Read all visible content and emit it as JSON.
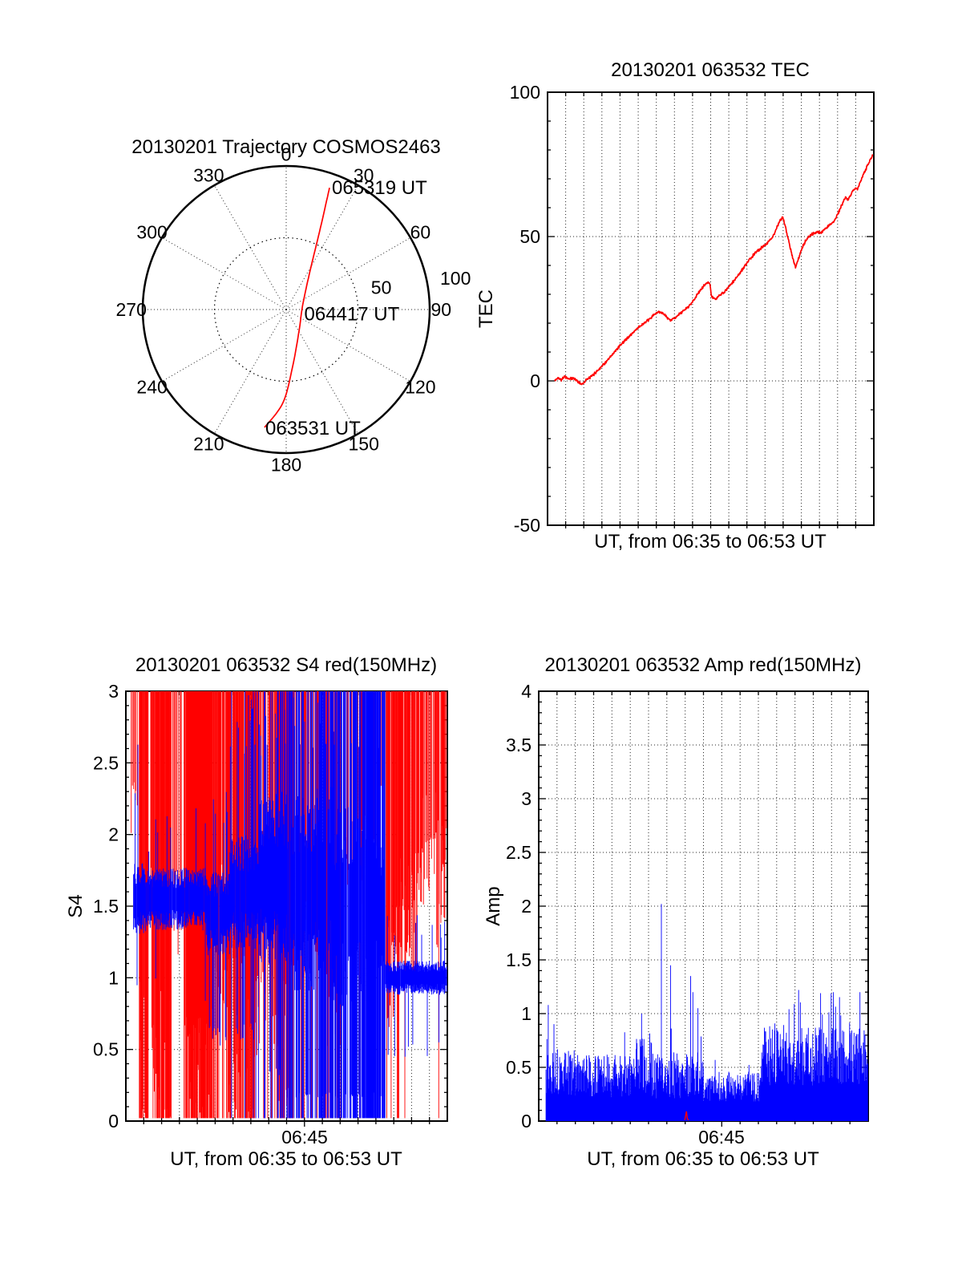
{
  "colors": {
    "trace_red": "#ff0000",
    "trace_blue": "#0000ff",
    "axis": "#000000",
    "background": "#ffffff"
  },
  "panels": {
    "trajectory": {
      "title": "20130201 Trajectory COSMOS2463"
    },
    "tec": {
      "title": "20130201 063532 TEC",
      "ylabel": "TEC",
      "xlabel": "UT, from 06:35 to 06:53 UT"
    },
    "s4": {
      "title": "20130201 063532 S4 red(150MHz)",
      "ylabel": "S4",
      "xlabel": "UT, from 06:35 to 06:53 UT",
      "xtick_label": "06:45"
    },
    "amp": {
      "title": "20130201 063532 Amp red(150MHz)",
      "ylabel": "Amp",
      "xlabel": "UT, from 06:35 to 06:53 UT",
      "xtick_label": "06:45"
    }
  },
  "chart_data": [
    {
      "panel": "trajectory",
      "type": "polar-trajectory",
      "title": "20130201 Trajectory COSMOS2463",
      "azimuth_ticks_deg": [
        0,
        30,
        60,
        90,
        120,
        150,
        180,
        210,
        240,
        270,
        300,
        330
      ],
      "rlim": [
        0,
        100
      ],
      "radial_ticks": [
        {
          "value": 50,
          "label": "50",
          "label_az_deg": 77,
          "label_r": 68
        },
        {
          "value": 100,
          "label": "100",
          "label_az_deg": 79.5,
          "label_r": 120
        }
      ],
      "trajectory_color": "#ff0000",
      "trajectory_points_az_deg_r": [
        [
          190.4,
          83.5
        ],
        [
          182.0,
          65.0
        ],
        [
          173.6,
          40.0
        ],
        [
          149.3,
          17.5
        ],
        [
          74.0,
          12.0
        ],
        [
          31.5,
          32.0
        ],
        [
          22.7,
          62.0
        ],
        [
          19.6,
          90.0
        ]
      ],
      "time_labels": [
        {
          "text": "063531 UT",
          "az_deg": 190.4,
          "r": 83.5
        },
        {
          "text": "064417 UT",
          "az_deg": 110.0,
          "r": 11.0
        },
        {
          "text": "065319 UT",
          "az_deg": 19.6,
          "r": 90.0
        }
      ]
    },
    {
      "panel": "tec",
      "type": "line",
      "title": "20130201 063532 TEC",
      "xlabel": "UT, from 06:35 to 06:53 UT",
      "ylabel": "TEC",
      "x_unit": "minutes after 06:35 UT",
      "x_range": [
        0,
        18
      ],
      "x_axis_time": [
        "06:35",
        "06:53"
      ],
      "x_grid_step_min": 1,
      "ylim": [
        -50,
        100
      ],
      "yticks": [
        100,
        50,
        0,
        -50
      ],
      "ytick_minor_step": 10,
      "grid_y": [
        0,
        50
      ],
      "color": "#ff0000",
      "noise_amplitude": 0.55,
      "noise_seed": 42,
      "anchors_t_min_value": [
        [
          0.4,
          0
        ],
        [
          0.6,
          1.2
        ],
        [
          0.75,
          0.4
        ],
        [
          0.95,
          1.6
        ],
        [
          1.15,
          0.6
        ],
        [
          1.45,
          0.9
        ],
        [
          1.7,
          -0.3
        ],
        [
          1.9,
          -1.2
        ],
        [
          2.1,
          0.2
        ],
        [
          2.4,
          1.4
        ],
        [
          2.7,
          3.2
        ],
        [
          3.0,
          5.2
        ],
        [
          3.3,
          7.0
        ],
        [
          3.6,
          9.2
        ],
        [
          3.95,
          12.0
        ],
        [
          4.3,
          14.2
        ],
        [
          4.6,
          16.0
        ],
        [
          5.0,
          18.5
        ],
        [
          5.3,
          19.8
        ],
        [
          5.6,
          21.2
        ],
        [
          5.85,
          22.8
        ],
        [
          6.05,
          23.6
        ],
        [
          6.2,
          24.0
        ],
        [
          6.4,
          23.2
        ],
        [
          6.6,
          21.8
        ],
        [
          6.8,
          20.9
        ],
        [
          7.0,
          21.8
        ],
        [
          7.2,
          22.8
        ],
        [
          7.45,
          24.0
        ],
        [
          7.7,
          25.3
        ],
        [
          7.95,
          27.0
        ],
        [
          8.2,
          29.3
        ],
        [
          8.5,
          32.0
        ],
        [
          8.7,
          33.4
        ],
        [
          8.85,
          34.2
        ],
        [
          8.95,
          33.8
        ],
        [
          9.05,
          29.0
        ],
        [
          9.25,
          28.4
        ],
        [
          9.5,
          29.6
        ],
        [
          9.75,
          30.8
        ],
        [
          10.0,
          32.5
        ],
        [
          10.3,
          34.8
        ],
        [
          10.6,
          37.3
        ],
        [
          10.9,
          39.9
        ],
        [
          11.2,
          42.4
        ],
        [
          11.5,
          44.6
        ],
        [
          11.75,
          45.9
        ],
        [
          12.0,
          47.1
        ],
        [
          12.2,
          48.3
        ],
        [
          12.4,
          49.8
        ],
        [
          12.55,
          51.5
        ],
        [
          12.7,
          53.8
        ],
        [
          12.8,
          55.2
        ],
        [
          12.9,
          56.2
        ],
        [
          12.98,
          56.6
        ],
        [
          13.1,
          54.0
        ],
        [
          13.25,
          50.0
        ],
        [
          13.4,
          46.0
        ],
        [
          13.55,
          42.0
        ],
        [
          13.68,
          39.3
        ],
        [
          13.8,
          41.5
        ],
        [
          13.95,
          44.3
        ],
        [
          14.1,
          46.8
        ],
        [
          14.3,
          49.2
        ],
        [
          14.5,
          50.4
        ],
        [
          14.7,
          51.2
        ],
        [
          14.9,
          51.6
        ],
        [
          15.1,
          51.4
        ],
        [
          15.3,
          52.6
        ],
        [
          15.5,
          53.6
        ],
        [
          15.7,
          54.6
        ],
        [
          15.9,
          56.4
        ],
        [
          16.1,
          59.0
        ],
        [
          16.3,
          61.8
        ],
        [
          16.45,
          63.8
        ],
        [
          16.58,
          62.8
        ],
        [
          16.7,
          64.2
        ],
        [
          16.85,
          65.8
        ],
        [
          17.0,
          66.8
        ],
        [
          17.1,
          66.4
        ],
        [
          17.25,
          68.8
        ],
        [
          17.4,
          71.2
        ],
        [
          17.55,
          73.2
        ],
        [
          17.7,
          75.2
        ],
        [
          17.85,
          77.2
        ],
        [
          17.95,
          78.6
        ]
      ]
    },
    {
      "panel": "s4",
      "type": "noise-envelope",
      "title": "20130201 063532 S4 red(150MHz)",
      "xlabel": "UT, from 06:35 to 06:53 UT",
      "ylabel": "S4",
      "x_unit": "minutes after 06:35 UT",
      "x_range": [
        0,
        18
      ],
      "x_axis_time": [
        "06:35",
        "06:53"
      ],
      "x_grid_step_min": 1,
      "xtick_labels": [
        {
          "t": 10,
          "label": "06:45"
        }
      ],
      "ylim": [
        0,
        3
      ],
      "yticks": [
        0,
        0.5,
        1,
        1.5,
        2,
        2.5,
        3
      ],
      "ytick_minor_step": 0.1,
      "grid_y": [
        0.5,
        1,
        1.5,
        2,
        2.5
      ],
      "synthesized_from_envelope": true,
      "noise_seed": 7,
      "series": [
        {
          "name": "red (150MHz)",
          "color": "#ff0000",
          "style": "hang-from-top",
          "segments": [
            {
              "t0": 0.3,
              "t1": 0.75,
              "density": 0.45,
              "lo_center": 2.45,
              "lo_spread": 0.45,
              "full_prob": 0.02
            },
            {
              "t0": 0.75,
              "t1": 1.25,
              "density": 0.85,
              "lo_center": 1.2,
              "lo_spread": 1.2,
              "full_prob": 0.55
            },
            {
              "t0": 1.25,
              "t1": 1.45,
              "density": 0.35,
              "lo_center": 2.2,
              "lo_spread": 0.8,
              "full_prob": 0.12
            },
            {
              "t0": 1.45,
              "t1": 2.55,
              "density": 0.93,
              "lo_center": 1.0,
              "lo_spread": 1.1,
              "full_prob": 0.66
            },
            {
              "t0": 2.55,
              "t1": 3.25,
              "density": 0.45,
              "lo_center": 2.0,
              "lo_spread": 0.9,
              "full_prob": 0.12
            },
            {
              "t0": 3.25,
              "t1": 4.95,
              "density": 0.96,
              "lo_center": 0.8,
              "lo_spread": 0.9,
              "full_prob": 0.72
            },
            {
              "t0": 4.95,
              "t1": 5.6,
              "density": 0.55,
              "lo_center": 1.8,
              "lo_spread": 1.0,
              "full_prob": 0.28
            },
            {
              "t0": 5.6,
              "t1": 7.25,
              "density": 0.85,
              "lo_center": 1.2,
              "lo_spread": 1.2,
              "full_prob": 0.5
            },
            {
              "t0": 7.25,
              "t1": 8.45,
              "density": 0.6,
              "lo_center": 1.6,
              "lo_spread": 1.2,
              "full_prob": 0.32
            },
            {
              "t0": 8.45,
              "t1": 9.25,
              "density": 0.8,
              "lo_center": 1.2,
              "lo_spread": 1.2,
              "full_prob": 0.5
            },
            {
              "t0": 9.25,
              "t1": 10.95,
              "density": 0.42,
              "lo_center": 2.0,
              "lo_spread": 1.0,
              "full_prob": 0.18
            },
            {
              "t0": 10.95,
              "t1": 12.05,
              "density": 0.7,
              "lo_center": 1.5,
              "lo_spread": 1.2,
              "full_prob": 0.4
            },
            {
              "t0": 12.05,
              "t1": 13.35,
              "density": 0.45,
              "lo_center": 2.2,
              "lo_spread": 0.8,
              "full_prob": 0.15
            },
            {
              "t0": 13.35,
              "t1": 14.55,
              "density": 0.32,
              "lo_center": 2.4,
              "lo_spread": 0.6,
              "full_prob": 0.08
            },
            {
              "t0": 14.55,
              "t1": 15.35,
              "density": 0.78,
              "lo_center": 1.6,
              "lo_spread": 1.0,
              "full_prob": 0.14
            },
            {
              "t0": 15.35,
              "t1": 16.35,
              "density": 0.72,
              "lo_center": 1.9,
              "lo_spread": 1.0,
              "full_prob": 0.05
            },
            {
              "t0": 16.35,
              "t1": 17.4,
              "density": 0.6,
              "lo_center": 2.3,
              "lo_spread": 0.8,
              "full_prob": 0.03
            },
            {
              "t0": 17.4,
              "t1": 18.0,
              "density": 0.55,
              "lo_center": 2.1,
              "lo_spread": 0.9,
              "full_prob": 0.12
            }
          ]
        },
        {
          "name": "blue",
          "color": "#0000ff",
          "style": "band",
          "segments": [
            {
              "t0": 0.4,
              "t1": 1.1,
              "density": 0.95,
              "center": 1.55,
              "spread": 0.25,
              "full_prob": 0,
              "spike_prob": 0.1,
              "spike_max": 2.65,
              "dip_prob": 0.05,
              "dip_min": 1.05
            },
            {
              "t0": 1.1,
              "t1": 4.5,
              "density": 0.95,
              "center": 1.55,
              "spread": 0.22,
              "full_prob": 0,
              "spike_prob": 0.05,
              "spike_max": 2.2,
              "dip_prob": 0.05,
              "dip_min": 1.0
            },
            {
              "t0": 4.5,
              "t1": 5.8,
              "density": 0.95,
              "center": 1.45,
              "spread": 0.3,
              "full_prob": 0.01,
              "spike_prob": 0.08,
              "spike_max": 2.3,
              "dip_prob": 0.12,
              "dip_min": 0.65
            },
            {
              "t0": 5.8,
              "t1": 7.4,
              "density": 0.95,
              "center": 1.6,
              "spread": 0.4,
              "full_prob": 0.05,
              "spike_prob": 0.14,
              "spike_max": 3.0,
              "dip_prob": 0.12,
              "dip_min": 0.7
            },
            {
              "t0": 7.4,
              "t1": 9.0,
              "density": 0.95,
              "center": 1.7,
              "spread": 0.6,
              "full_prob": 0.2,
              "spike_prob": 0.18,
              "spike_max": 3.0,
              "dip_prob": 0.15,
              "dip_min": 0.4
            },
            {
              "t0": 9.0,
              "t1": 10.6,
              "density": 0.9,
              "center": 1.6,
              "spread": 0.7,
              "full_prob": 0.42,
              "spike_prob": 0.18,
              "spike_max": 3.0,
              "dip_prob": 0.18,
              "dip_min": 0.2
            },
            {
              "t0": 10.6,
              "t1": 11.6,
              "density": 0.92,
              "center": 1.7,
              "spread": 0.65,
              "full_prob": 0.52,
              "spike_prob": 0.18,
              "spike_max": 3.0,
              "dip_prob": 0.18,
              "dip_min": 0.2
            },
            {
              "t0": 11.6,
              "t1": 13.3,
              "density": 0.9,
              "center": 1.5,
              "spread": 0.7,
              "full_prob": 0.48,
              "spike_prob": 0.18,
              "spike_max": 3.0,
              "dip_prob": 0.18,
              "dip_min": 0.2
            },
            {
              "t0": 13.3,
              "t1": 14.5,
              "density": 0.95,
              "center": 1.5,
              "spread": 0.5,
              "full_prob": 0.82,
              "spike_prob": 0.1,
              "spike_max": 3.0,
              "dip_prob": 0.1,
              "dip_min": 0.2
            },
            {
              "t0": 14.5,
              "t1": 17.99,
              "density": 0.97,
              "center": 1.0,
              "spread": 0.12,
              "full_prob": 0,
              "spike_prob": 0.06,
              "spike_max": 1.45,
              "dip_prob": 0.06,
              "dip_min": 0.55
            }
          ]
        }
      ]
    },
    {
      "panel": "amp",
      "type": "spike-series",
      "title": "20130201 063532 Amp red(150MHz)",
      "xlabel": "UT, from 06:35 to 06:53 UT",
      "ylabel": "Amp",
      "x_unit": "minutes after 06:35 UT",
      "x_range": [
        0,
        18
      ],
      "x_axis_time": [
        "06:35",
        "06:53"
      ],
      "x_grid_step_min": 1,
      "xtick_labels": [
        {
          "t": 10,
          "label": "06:45"
        }
      ],
      "ylim": [
        0,
        4
      ],
      "yticks": [
        0,
        0.5,
        1,
        1.5,
        2,
        2.5,
        3,
        3.5,
        4
      ],
      "ytick_minor_step": 0.1,
      "grid_y": [
        0.5,
        1,
        1.5,
        2,
        2.5,
        3,
        3.5
      ],
      "synthesized_from_envelope": true,
      "noise_seed": 13,
      "blue_series": {
        "color": "#0000ff",
        "segments": [
          {
            "t0": 0.4,
            "t1": 2.1,
            "base": 0.45,
            "var": 0.22,
            "spike_prob": 0.02,
            "spike_max": 1.05
          },
          {
            "t0": 2.1,
            "t1": 5.3,
            "base": 0.42,
            "var": 0.2,
            "spike_prob": 0.012,
            "spike_max": 0.95
          },
          {
            "t0": 5.3,
            "t1": 6.2,
            "base": 0.52,
            "var": 0.26,
            "spike_prob": 0.04,
            "spike_max": 1.0
          },
          {
            "t0": 6.2,
            "t1": 9.0,
            "base": 0.42,
            "var": 0.22,
            "spike_prob": 0.02,
            "spike_max": 0.9
          },
          {
            "t0": 9.0,
            "t1": 12.15,
            "base": 0.32,
            "var": 0.14,
            "spike_prob": 0.008,
            "spike_max": 0.6
          },
          {
            "t0": 12.15,
            "t1": 17.99,
            "base": 0.6,
            "var": 0.27,
            "spike_prob": 0.05,
            "spike_max": 1.22
          }
        ],
        "major_spikes_t_value": [
          [
            0.52,
            1.08
          ],
          [
            5.62,
            1.0
          ],
          [
            6.7,
            2.02
          ],
          [
            7.2,
            1.45
          ],
          [
            8.3,
            1.35
          ],
          [
            8.42,
            1.2
          ],
          [
            8.7,
            1.05
          ],
          [
            14.2,
            1.22
          ],
          [
            16.1,
            1.2
          ],
          [
            17.55,
            1.2
          ]
        ]
      },
      "red_series": {
        "color": "#ff0000",
        "baseline": 0.01,
        "spike_t": 8.1,
        "spike_value": 0.09
      }
    }
  ]
}
